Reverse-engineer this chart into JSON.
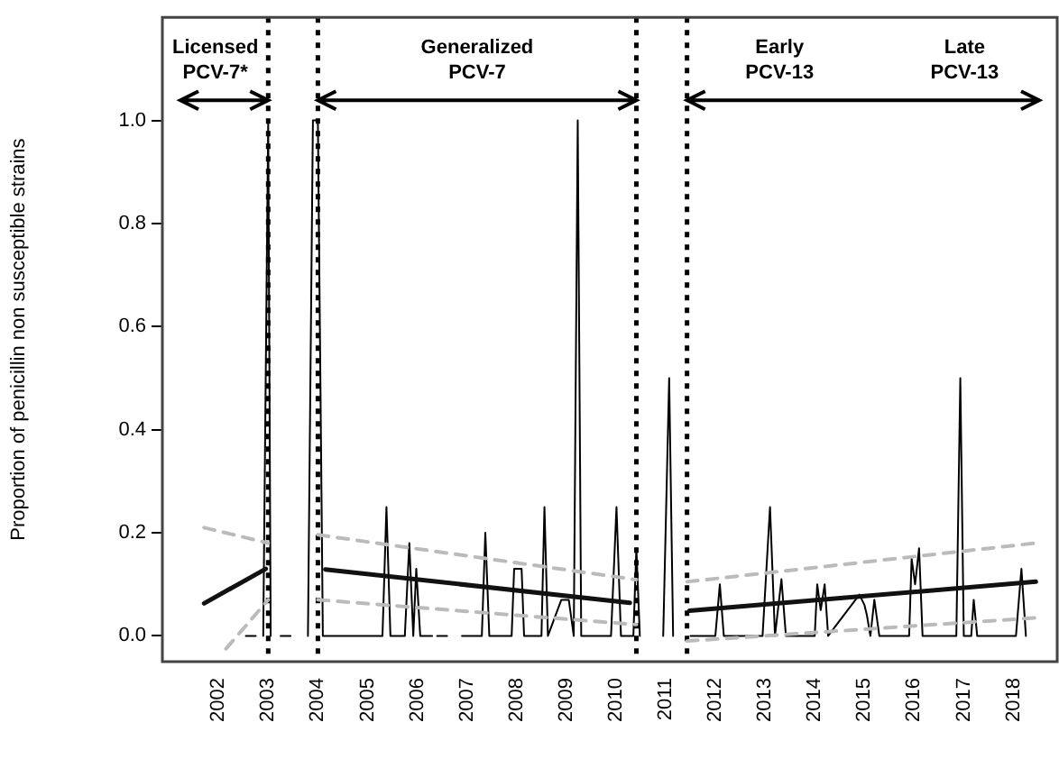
{
  "chart_data": {
    "type": "line",
    "ylabel": "Proportion of penicillin non susceptible strains",
    "xlim": [
      2000.87,
      2018.88
    ],
    "xticks": [
      2002,
      2003,
      2004,
      2005,
      2006,
      2007,
      2008,
      2009,
      2010,
      2011,
      2012,
      2013,
      2014,
      2015,
      2016,
      2017,
      2018
    ],
    "ylim": [
      -0.05,
      1.2
    ],
    "yticks": [
      {
        "value": 0,
        "label": "0.0"
      },
      {
        "value": 0.2,
        "label": "0.2"
      },
      {
        "value": 0.4,
        "label": "0.4"
      },
      {
        "value": 0.6,
        "label": "0.6"
      },
      {
        "value": 0.8,
        "label": "0.8"
      },
      {
        "value": 1,
        "label": "1.0"
      }
    ],
    "grid": false,
    "legend": false,
    "marker": "none",
    "series": [
      {
        "color": "#000000",
        "line_style": "solid",
        "x": [
          2002.55,
          2002.75,
          2002.8,
          2002.9,
          2003.0,
          2003.05,
          2003.2,
          2003.25,
          2003.45,
          2003.5,
          2003.8,
          2003.9,
          2004.0,
          2004.1,
          2005.3,
          2005.38,
          2005.46,
          2005.75,
          2005.84,
          2005.92,
          2005.98,
          2006.06,
          2006.3,
          2006.35,
          2006.4,
          2006.6,
          2006.65,
          2006.9,
          2007.3,
          2007.37,
          2007.45,
          2007.9,
          2007.95,
          2008.1,
          2008.15,
          2008.5,
          2008.56,
          2008.63,
          2008.9,
          2009.05,
          2009.15,
          2009.23,
          2009.3,
          2009.9,
          2010.01,
          2010.1,
          2010.35,
          2010.41,
          2010.48,
          2010.55,
          2010.95,
          2011.07,
          2011.15,
          2011.2,
          2011.5,
          2012.0,
          2012.09,
          2012.17,
          2012.95,
          2013.1,
          2013.2,
          2013.33,
          2013.42,
          2014.0,
          2014.05,
          2014.12,
          2014.2,
          2014.27,
          2014.9,
          2015.0,
          2015.05,
          2015.12,
          2015.2,
          2015.3,
          2015.9,
          2015.95,
          2016.02,
          2016.1,
          2016.17,
          2016.85,
          2016.93,
          2017.0,
          2017.15,
          2017.2,
          2017.27,
          2018.05,
          2018.16,
          2018.25
        ],
        "values": [
          0,
          0,
          null,
          0,
          1,
          0,
          null,
          0,
          0,
          null,
          0,
          1,
          1,
          0,
          0,
          0.25,
          0,
          0,
          0.18,
          0,
          0.13,
          0,
          0,
          null,
          0,
          0,
          null,
          0,
          0,
          0.2,
          0,
          0,
          0.13,
          0.13,
          0,
          0,
          0.25,
          0,
          0.07,
          0.07,
          0,
          1,
          0,
          0,
          0.25,
          0,
          0,
          0.17,
          0,
          null,
          0,
          0.5,
          0,
          null,
          0,
          0,
          0.1,
          0,
          0,
          0.25,
          0,
          0.11,
          0,
          0,
          0.1,
          0.05,
          0.1,
          0,
          0.08,
          0.06,
          0.04,
          0,
          0.07,
          0,
          0,
          0.15,
          0.1,
          0.17,
          0,
          0,
          0.5,
          0,
          0,
          0.07,
          0,
          0,
          0.13,
          0
        ]
      },
      {
        "color": "#111111",
        "line_style": "solid",
        "x": [
          2001.71,
          2002.95,
          2003.01,
          2004.15,
          2010.28,
          2010.42,
          2011.48,
          2018.45
        ],
        "values": [
          0.063,
          0.13,
          null,
          0.129,
          0.064,
          null,
          0.049,
          0.105
        ]
      },
      {
        "color": "#bbbbbb",
        "line_style": "dashed",
        "x": [
          2001.71,
          2003.0,
          2003.01,
          2004.0,
          2010.41,
          2010.42,
          2011.43,
          2018.45
        ],
        "values": [
          0.21,
          0.18,
          null,
          0.196,
          0.109,
          null,
          0.105,
          0.18
        ]
      },
      {
        "color": "#bbbbbb",
        "line_style": "dashed",
        "x": [
          2002.15,
          2003.0,
          2003.01,
          2004.0,
          2010.41,
          2010.42,
          2011.43,
          2018.45
        ],
        "values": [
          -0.025,
          0.07,
          null,
          0.07,
          0.022,
          null,
          -0.01,
          0.035
        ]
      }
    ],
    "ref_lines": [
      {
        "axis": "x",
        "value": 2003,
        "color": "#000000",
        "line_style": "dotted"
      },
      {
        "axis": "x",
        "value": 2004,
        "color": "#000000",
        "line_style": "dotted"
      },
      {
        "axis": "x",
        "value": 2010.41,
        "color": "#000000",
        "line_style": "dotted"
      },
      {
        "axis": "x",
        "value": 2011.43,
        "color": "#000000",
        "line_style": "dotted"
      }
    ],
    "annotations": [
      "Licensed PCV-7*",
      "Generalized PCV-7",
      "Early PCV-13",
      "Late PCV-13"
    ]
  }
}
